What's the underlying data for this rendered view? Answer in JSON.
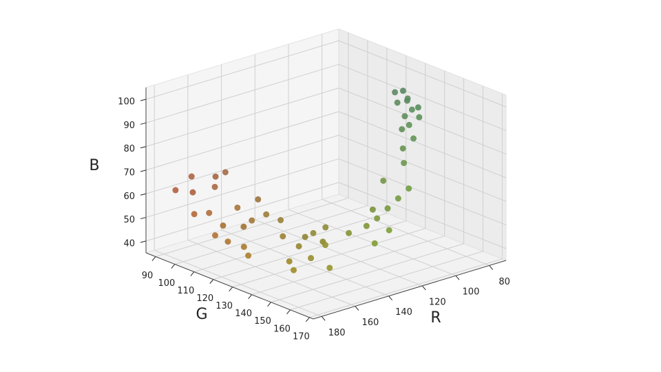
{
  "chart_data": {
    "type": "scatter3d",
    "xlabel": "R",
    "ylabel": "G",
    "zlabel": "B",
    "xlim": [
      70,
      185
    ],
    "ylim": [
      85,
      172
    ],
    "zlim": [
      35,
      105
    ],
    "xticks": [
      80,
      100,
      120,
      140,
      160,
      180
    ],
    "yticks": [
      90,
      100,
      110,
      120,
      130,
      140,
      150,
      160,
      170
    ],
    "zticks": [
      40,
      50,
      60,
      70,
      80,
      90,
      100
    ],
    "grid": true,
    "x": [
      175,
      172,
      178,
      168,
      176,
      170,
      166,
      174,
      162,
      169,
      158,
      164,
      180,
      160,
      171,
      156,
      177,
      163,
      155,
      150,
      158,
      146,
      152,
      144,
      160,
      148,
      141,
      154,
      138,
      150,
      134,
      128,
      124,
      130,
      120,
      116,
      122,
      112,
      118,
      126,
      108,
      104,
      100,
      98,
      96,
      94,
      92,
      90,
      95,
      88,
      92,
      97,
      89,
      100
    ],
    "y": [
      100,
      98,
      104,
      106,
      110,
      112,
      116,
      118,
      120,
      122,
      124,
      108,
      96,
      114,
      126,
      118,
      114,
      102,
      130,
      134,
      136,
      138,
      142,
      132,
      140,
      146,
      140,
      128,
      136,
      150,
      146,
      150,
      152,
      156,
      154,
      156,
      148,
      158,
      150,
      160,
      152,
      148,
      150,
      146,
      142,
      144,
      140,
      138,
      136,
      142,
      146,
      139,
      135,
      144
    ],
    "z": [
      70,
      62,
      56,
      66,
      58,
      52,
      60,
      48,
      55,
      46,
      58,
      72,
      64,
      50,
      44,
      62,
      50,
      68,
      50,
      46,
      42,
      52,
      44,
      48,
      40,
      50,
      54,
      56,
      46,
      42,
      52,
      55,
      58,
      50,
      62,
      66,
      60,
      70,
      72,
      56,
      78,
      82,
      86,
      90,
      92,
      95,
      98,
      96,
      100,
      94,
      92,
      97,
      99,
      88
    ]
  }
}
